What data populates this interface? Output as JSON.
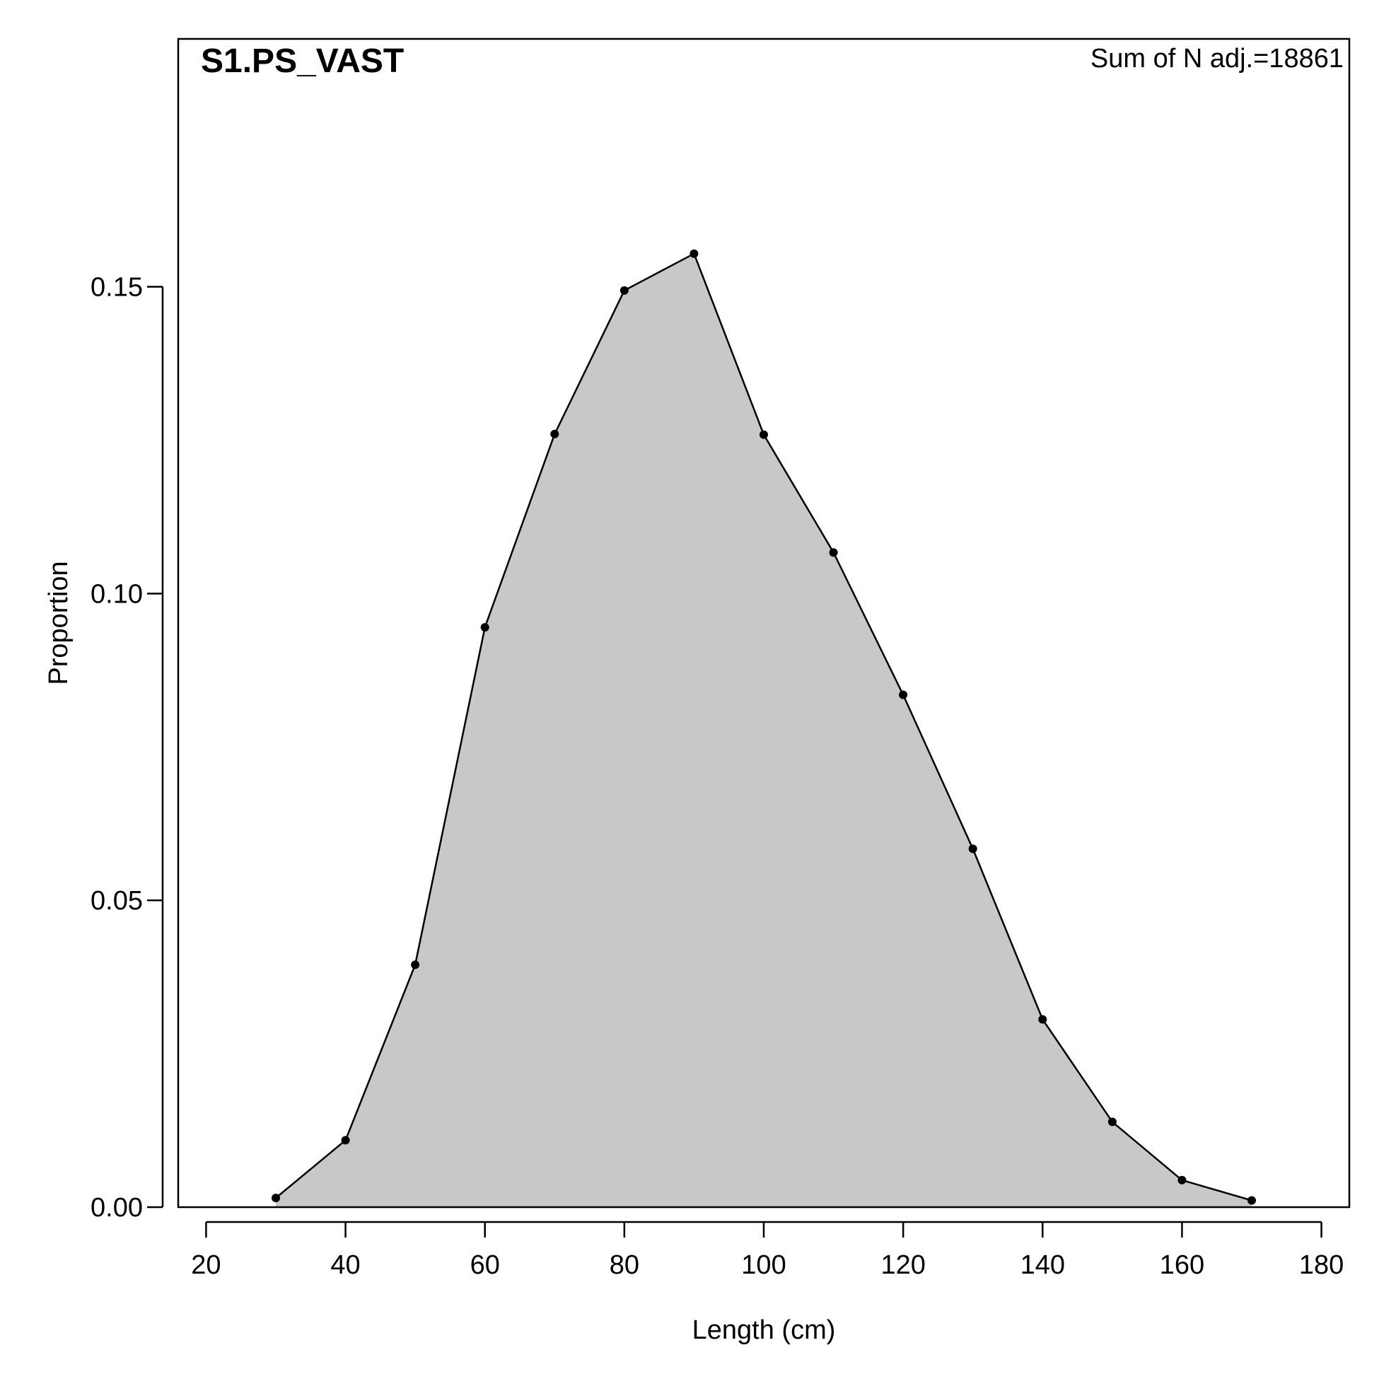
{
  "chart_data": {
    "type": "area",
    "title": "S1.PS_VAST",
    "annotation": "Sum of N adj.=18861",
    "xlabel": "Length (cm)",
    "ylabel": "Proportion",
    "xlim": [
      16,
      184
    ],
    "ylim": [
      0,
      0.1904
    ],
    "xticks": [
      20,
      40,
      60,
      80,
      100,
      120,
      140,
      160,
      180
    ],
    "yticks": [
      0.0,
      0.05,
      0.1,
      0.15
    ],
    "ytick_labels": [
      "0.00",
      "0.05",
      "0.10",
      "0.15"
    ],
    "x": [
      30,
      40,
      50,
      60,
      70,
      80,
      90,
      100,
      110,
      120,
      130,
      140,
      150,
      160,
      170
    ],
    "y": [
      0.0015,
      0.0109,
      0.0395,
      0.0945,
      0.126,
      0.1494,
      0.1554,
      0.1259,
      0.1067,
      0.0835,
      0.0584,
      0.0306,
      0.0139,
      0.0044,
      0.0011
    ],
    "fill_color": "#c8c8c8",
    "line_color": "#000000",
    "grid": false
  }
}
